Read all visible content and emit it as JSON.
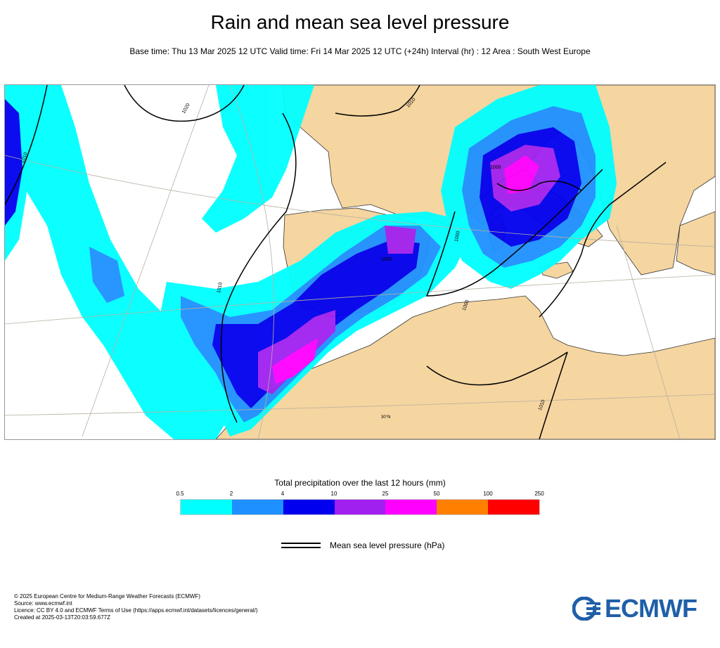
{
  "header": {
    "title": "Rain and mean sea level pressure",
    "subtitle": "Base time: Thu 13 Mar 2025 12 UTC Valid time: Fri 14 Mar 2025 12 UTC (+24h) Interval (hr) : 12 Area : South West Europe"
  },
  "map": {
    "isobar_labels": [
      "1020",
      "1010",
      "1010",
      "1000",
      "1000",
      "1000",
      "1010",
      "1010",
      "1010",
      "1000"
    ],
    "latitude_label": "30°N",
    "colors": {
      "land": "#f5d5a0",
      "sea": "#ffffff",
      "isobar": "#000000",
      "graticule": "#b7b0a0"
    }
  },
  "legend": {
    "title": "Total precipitation over the last 12 hours (mm)",
    "ticks": [
      "0.5",
      "2",
      "4",
      "10",
      "25",
      "50",
      "100",
      "250"
    ],
    "colors": [
      "#00ffff",
      "#1e90ff",
      "#0000ee",
      "#a020f0",
      "#ff00ff",
      "#ff8000",
      "#ff0000"
    ],
    "pressure_label": "Mean sea level pressure (hPa)"
  },
  "footer": {
    "lines": [
      "© 2025 European Centre for Medium-Range Weather Forecasts (ECMWF)",
      "Source: www.ecmwf.int",
      "Licence: CC BY 4.0 and ECMWF Terms of Use (https://apps.ecmwf.int/datasets/licences/general/)",
      "Created at 2025-03-13T20:03:59.677Z"
    ],
    "logo_text": "ECMWF"
  }
}
